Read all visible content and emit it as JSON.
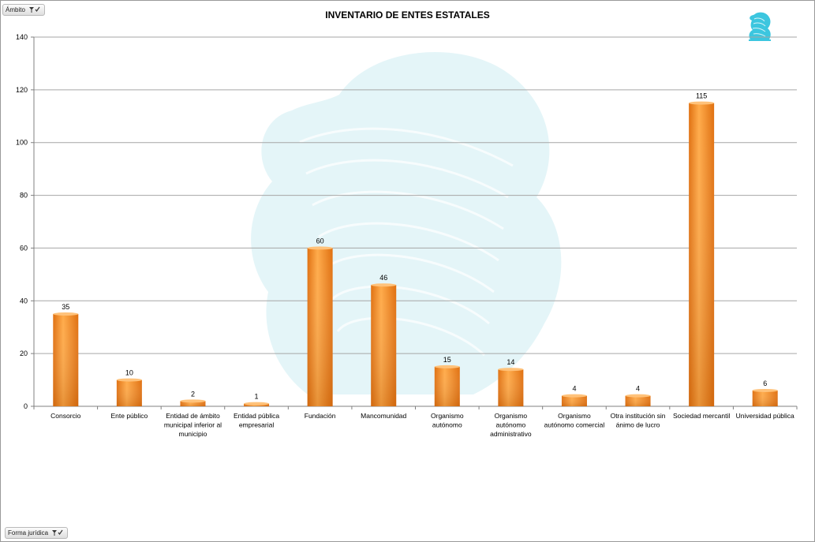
{
  "filters": {
    "top_label": "Ámbito",
    "bottom_label": "Forma jurídica"
  },
  "colors": {
    "bar_light": "#ffab4a",
    "bar_dark": "#e07010",
    "grid": "#a6a6a6",
    "watermark": "#dff3f7",
    "logo": "#3cc6df"
  },
  "chart_data": {
    "type": "bar",
    "title": "INVENTARIO DE ENTES ESTATALES",
    "xlabel": "",
    "ylabel": "",
    "ylim": [
      0,
      140
    ],
    "yticks": [
      0,
      20,
      40,
      60,
      80,
      100,
      120,
      140
    ],
    "grid": true,
    "legend": "none",
    "categories": [
      "Consorcio",
      "Ente público",
      "Entidad de ámbito municipal inferior al municipio",
      "Entidad pública empresarial",
      "Fundación",
      "Mancomunidad",
      "Organismo autónomo",
      "Organismo autónomo administrativo",
      "Organismo autónomo comercial",
      "Otra institución sin ánimo de lucro",
      "Sociedad mercantil",
      "Universidad pública"
    ],
    "category_lines": [
      [
        "Consorcio"
      ],
      [
        "Ente público"
      ],
      [
        "Entidad de ámbito",
        "municipal inferior al",
        "municipio"
      ],
      [
        "Entidad pública",
        "empresarial"
      ],
      [
        "Fundación"
      ],
      [
        "Mancomunidad"
      ],
      [
        "Organismo",
        "autónomo"
      ],
      [
        "Organismo",
        "autónomo",
        "administrativo"
      ],
      [
        "Organismo",
        "autónomo comercial"
      ],
      [
        "Otra institución sin",
        "ánimo de lucro"
      ],
      [
        "Sociedad mercantil"
      ],
      [
        "Universidad pública"
      ]
    ],
    "values": [
      35,
      10,
      2,
      1,
      60,
      46,
      15,
      14,
      4,
      4,
      115,
      6
    ]
  }
}
